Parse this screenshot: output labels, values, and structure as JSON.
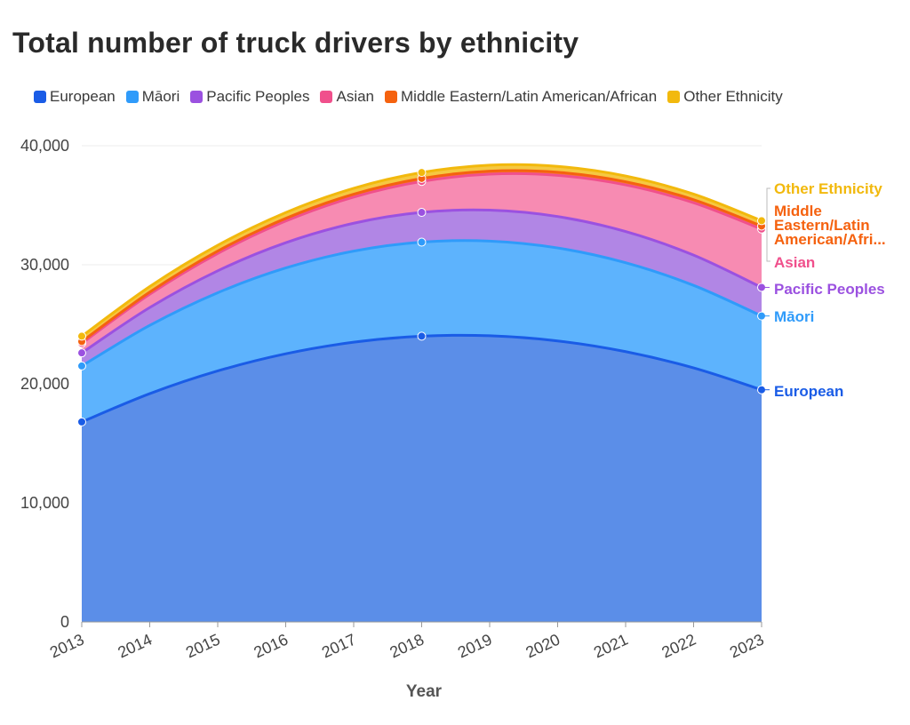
{
  "chart_data": {
    "type": "area",
    "stacked": true,
    "title": "Total number of truck drivers by ethnicity",
    "xlabel": "Year",
    "ylabel": "",
    "x": [
      "2013",
      "2014",
      "2015",
      "2016",
      "2017",
      "2018",
      "2019",
      "2020",
      "2021",
      "2022",
      "2023"
    ],
    "marker_x": [
      "2013",
      "2018",
      "2023"
    ],
    "ylim": [
      0,
      40000
    ],
    "yticks": [
      0,
      10000,
      20000,
      30000,
      40000
    ],
    "ytick_labels": [
      "0",
      "10,000",
      "20,000",
      "30,000",
      "40,000"
    ],
    "legend_position": "top",
    "series": [
      {
        "name": "European",
        "label": "European",
        "color": "#1a5ce6",
        "fill": "#5b8ee8",
        "values": [
          16800,
          null,
          null,
          null,
          null,
          24000,
          null,
          null,
          null,
          null,
          19500
        ]
      },
      {
        "name": "Māori",
        "label": "Māori",
        "color": "#2f9bfa",
        "fill": "#5db3fd",
        "values": [
          4700,
          null,
          null,
          null,
          null,
          7900,
          null,
          null,
          null,
          null,
          6200
        ]
      },
      {
        "name": "Pacific Peoples",
        "label": "Pacific Peoples",
        "color": "#9b51e0",
        "fill": "#b186e5",
        "values": [
          1100,
          null,
          null,
          null,
          null,
          2500,
          null,
          null,
          null,
          null,
          2400
        ]
      },
      {
        "name": "Asian",
        "label": "Asian",
        "color": "#f0508c",
        "fill": "#f78bb2",
        "values": [
          800,
          null,
          null,
          null,
          null,
          2600,
          null,
          null,
          null,
          null,
          4900
        ]
      },
      {
        "name": "Middle Eastern/Latin American/African",
        "label": "Middle Eastern/Latin American/Afri...",
        "color": "#f5620f",
        "fill": "#f77c37",
        "values": [
          150,
          null,
          null,
          null,
          null,
          250,
          null,
          null,
          null,
          null,
          250
        ]
      },
      {
        "name": "Other Ethnicity",
        "label": "Other Ethnicity",
        "color": "#f2b90d",
        "fill": "#f5c842",
        "values": [
          450,
          null,
          null,
          null,
          null,
          500,
          null,
          null,
          null,
          null,
          450
        ]
      }
    ]
  }
}
